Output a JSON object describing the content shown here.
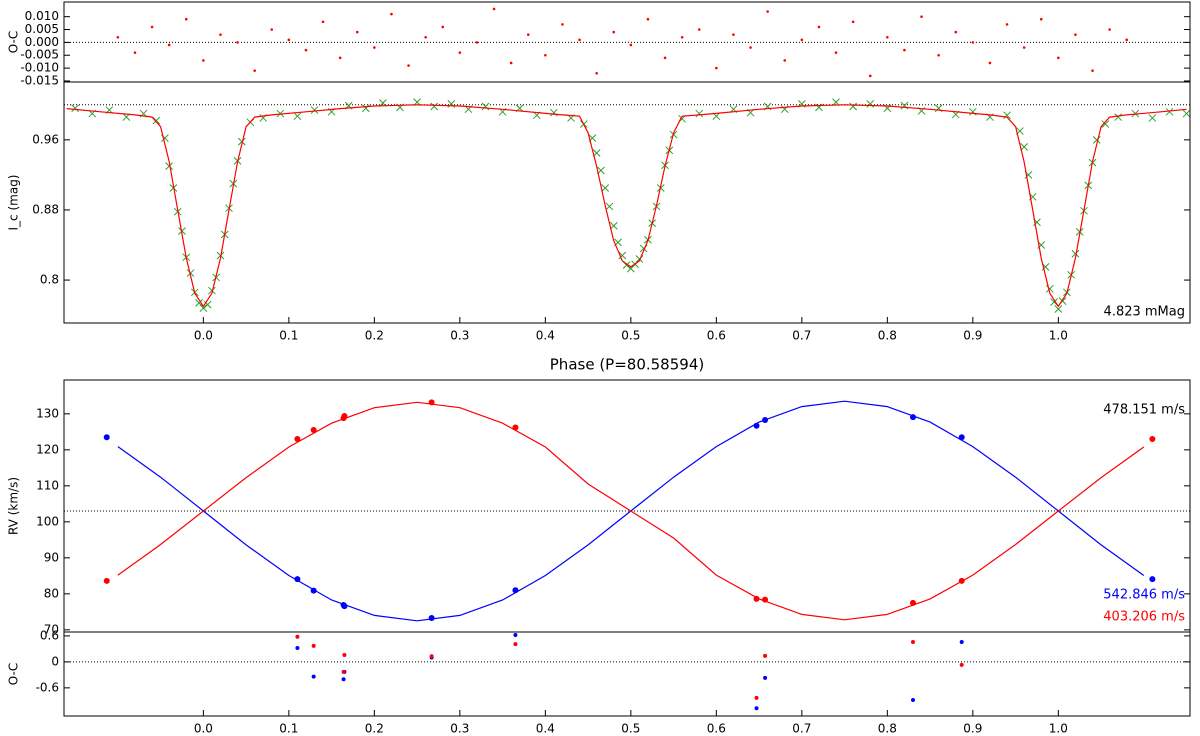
{
  "chart_data": [
    {
      "type": "scatter",
      "ylabel": "O-C",
      "xlim": [
        -0.163,
        1.154
      ],
      "ylim": [
        -0.0154,
        0.0157
      ],
      "yticks": [
        {
          "value": 0.01,
          "label": "0.010"
        },
        0.005,
        {
          "value": 0,
          "label": "0.000"
        },
        -0.005,
        {
          "value": -0.01,
          "label": "-0.010"
        },
        -0.015
      ],
      "reference": 0,
      "series": [
        {
          "type": "scatter",
          "marker": "dot",
          "color": "#ff0000",
          "x": [
            -0.1,
            -0.08,
            -0.06,
            -0.04,
            -0.02,
            0,
            0.02,
            0.04,
            0.06,
            0.08,
            0.1,
            0.12,
            0.14,
            0.16,
            0.18,
            0.2,
            0.22,
            0.24,
            0.26,
            0.28,
            0.3,
            0.32,
            0.34,
            0.36,
            0.38,
            0.4,
            0.42,
            0.44,
            0.46,
            0.48,
            0.5,
            0.52,
            0.54,
            0.56,
            0.58,
            0.6,
            0.62,
            0.64,
            0.66,
            0.68,
            0.7,
            0.72,
            0.74,
            0.76,
            0.78,
            0.8,
            0.82,
            0.84,
            0.86,
            0.88,
            0.9,
            0.92,
            0.94,
            0.96,
            0.98,
            1,
            1.02,
            1.04,
            1.06,
            1.08
          ],
          "values": [
            0.002,
            -0.004,
            0.006,
            -0.001,
            0.009,
            -0.007,
            0.003,
            0,
            -0.011,
            0.005,
            0.001,
            -0.003,
            0.008,
            -0.006,
            0.004,
            -0.002,
            0.011,
            -0.009,
            0.002,
            0.006,
            -0.004,
            0,
            0.013,
            -0.008,
            0.003,
            -0.005,
            0.007,
            0.001,
            -0.012,
            0.004,
            -0.001,
            0.009,
            -0.006,
            0.002,
            0.005,
            -0.01,
            0.003,
            -0.002,
            0.012,
            -0.007,
            0.001,
            0.006,
            -0.004,
            0.008,
            -0.013,
            0.002,
            -0.003,
            0.01,
            -0.005,
            0.004,
            0,
            -0.008,
            0.007,
            -0.002,
            0.009,
            -0.006,
            0.003,
            -0.011,
            0.005,
            0.001
          ]
        }
      ]
    },
    {
      "type": "line",
      "ylabel": "I_c (mag)",
      "xlabel": "Phase (P=80.58594)",
      "annotation": "4.823 mMag",
      "xlim": [
        -0.163,
        1.154
      ],
      "ylim": [
        0.751,
        1.026
      ],
      "xticks": [
        {
          "value": 0,
          "label": "0.0"
        },
        0.1,
        0.2,
        0.3,
        0.4,
        0.5,
        0.6,
        0.7,
        0.8,
        0.9,
        {
          "value": 1,
          "label": "1.0"
        }
      ],
      "yticks": [
        0.96,
        0.88,
        0.8
      ],
      "reference": 1,
      "series": [
        {
          "type": "scatter",
          "marker": "x",
          "color": "#2ca02c",
          "x": [
            -0.15,
            -0.13,
            -0.11,
            -0.09,
            -0.07,
            -0.055,
            -0.045,
            -0.04,
            -0.035,
            -0.03,
            -0.025,
            -0.02,
            -0.015,
            -0.01,
            -0.005,
            0,
            0.005,
            0.01,
            0.015,
            0.02,
            0.025,
            0.03,
            0.035,
            0.04,
            0.045,
            0.055,
            0.07,
            0.09,
            0.11,
            0.13,
            0.15,
            0.17,
            0.19,
            0.21,
            0.23,
            0.25,
            0.27,
            0.29,
            0.31,
            0.33,
            0.35,
            0.37,
            0.39,
            0.41,
            0.43,
            0.445,
            0.455,
            0.46,
            0.465,
            0.47,
            0.475,
            0.48,
            0.485,
            0.49,
            0.495,
            0.5,
            0.505,
            0.51,
            0.515,
            0.52,
            0.525,
            0.53,
            0.535,
            0.54,
            0.545,
            0.55,
            0.56,
            0.58,
            0.6,
            0.62,
            0.64,
            0.66,
            0.68,
            0.7,
            0.72,
            0.74,
            0.76,
            0.78,
            0.8,
            0.82,
            0.84,
            0.86,
            0.88,
            0.9,
            0.92,
            0.94,
            0.955,
            0.96,
            0.965,
            0.97,
            0.975,
            0.98,
            0.985,
            0.99,
            0.995,
            1,
            1.005,
            1.01,
            1.015,
            1.02,
            1.025,
            1.03,
            1.035,
            1.04,
            1.045,
            1.055,
            1.07,
            1.09,
            1.11,
            1.13,
            1.15
          ],
          "values": [
            0.996,
            0.99,
            0.994,
            0.986,
            0.99,
            0.982,
            0.962,
            0.93,
            0.905,
            0.878,
            0.856,
            0.826,
            0.808,
            0.786,
            0.774,
            0.768,
            0.772,
            0.788,
            0.803,
            0.828,
            0.852,
            0.882,
            0.91,
            0.936,
            0.958,
            0.98,
            0.985,
            0.99,
            0.987,
            0.994,
            0.992,
            0.999,
            0.996,
            1.002,
            0.997,
            1.003,
            0.998,
            1.001,
            0.995,
            0.998,
            0.992,
            0.996,
            0.988,
            0.991,
            0.985,
            0.978,
            0.962,
            0.945,
            0.925,
            0.905,
            0.884,
            0.862,
            0.843,
            0.828,
            0.817,
            0.813,
            0.818,
            0.824,
            0.836,
            0.846,
            0.865,
            0.884,
            0.905,
            0.931,
            0.948,
            0.966,
            0.984,
            0.99,
            0.987,
            0.995,
            0.991,
            0.998,
            0.995,
            1.001,
            0.997,
            1.003,
            0.998,
            1.001,
            0.996,
            0.999,
            0.993,
            0.996,
            0.989,
            0.992,
            0.986,
            0.988,
            0.97,
            0.952,
            0.92,
            0.895,
            0.866,
            0.84,
            0.815,
            0.79,
            0.775,
            0.767,
            0.776,
            0.786,
            0.806,
            0.83,
            0.855,
            0.879,
            0.908,
            0.934,
            0.96,
            0.978,
            0.986,
            0.99,
            0.985,
            0.992,
            0.99
          ]
        },
        {
          "type": "line",
          "color": "#ff0000",
          "x": [
            -0.16,
            -0.12,
            -0.08,
            -0.06,
            -0.05,
            -0.04,
            -0.03,
            -0.02,
            -0.01,
            0,
            0.01,
            0.02,
            0.03,
            0.04,
            0.05,
            0.06,
            0.08,
            0.12,
            0.16,
            0.2,
            0.25,
            0.3,
            0.35,
            0.4,
            0.42,
            0.44,
            0.45,
            0.46,
            0.47,
            0.48,
            0.49,
            0.5,
            0.51,
            0.52,
            0.53,
            0.54,
            0.55,
            0.56,
            0.58,
            0.6,
            0.65,
            0.7,
            0.75,
            0.8,
            0.85,
            0.9,
            0.92,
            0.94,
            0.95,
            0.96,
            0.97,
            0.98,
            0.99,
            1,
            1.01,
            1.02,
            1.03,
            1.04,
            1.05,
            1.06,
            1.08,
            1.12,
            1.15
          ],
          "values": [
            0.9957,
            0.992,
            0.9885,
            0.986,
            0.975,
            0.935,
            0.88,
            0.825,
            0.785,
            0.77,
            0.785,
            0.825,
            0.88,
            0.935,
            0.975,
            0.986,
            0.9885,
            0.992,
            0.9957,
            0.9986,
            1,
            0.9986,
            0.9948,
            0.9902,
            0.9885,
            0.987,
            0.968,
            0.93,
            0.885,
            0.845,
            0.822,
            0.815,
            0.822,
            0.845,
            0.885,
            0.93,
            0.968,
            0.987,
            0.9885,
            0.9902,
            0.9948,
            0.9986,
            1,
            0.9986,
            0.9948,
            0.9902,
            0.9885,
            0.986,
            0.975,
            0.935,
            0.88,
            0.825,
            0.785,
            0.77,
            0.785,
            0.825,
            0.88,
            0.935,
            0.975,
            0.986,
            0.9885,
            0.992,
            0.9948
          ]
        }
      ]
    },
    {
      "type": "line",
      "ylabel": "RV (km/s)",
      "annotations": [
        {
          "text": "478.151 m/s",
          "color": "#000000"
        },
        {
          "text": "542.846 m/s",
          "color": "#0000ff"
        },
        {
          "text": "403.206 m/s",
          "color": "#ff0000"
        }
      ],
      "xlim": [
        -0.163,
        1.154
      ],
      "ylim": [
        69.4,
        139.4
      ],
      "yticks": [
        130,
        120,
        110,
        100,
        90,
        80,
        70
      ],
      "reference": 103,
      "series": [
        {
          "type": "line",
          "color": "#0000ff",
          "x": [
            -0.1,
            -0.05,
            0,
            0.05,
            0.1,
            0.15,
            0.2,
            0.25,
            0.3,
            0.35,
            0.4,
            0.45,
            0.5,
            0.55,
            0.6,
            0.65,
            0.7,
            0.75,
            0.8,
            0.85,
            0.9,
            0.95,
            1,
            1.05,
            1.1
          ],
          "values": [
            120.9,
            112.4,
            103,
            93.6,
            85.1,
            78.3,
            74,
            72.5,
            74,
            78.3,
            85.1,
            93.6,
            103,
            112.4,
            120.9,
            127.7,
            132,
            133.5,
            132,
            127.7,
            120.9,
            112.4,
            103,
            93.6,
            85.1
          ]
        },
        {
          "type": "line",
          "color": "#ff0000",
          "x": [
            -0.1,
            -0.05,
            0,
            0.05,
            0.1,
            0.15,
            0.2,
            0.25,
            0.3,
            0.35,
            0.4,
            0.45,
            0.5,
            0.55,
            0.6,
            0.65,
            0.7,
            0.75,
            0.8,
            0.85,
            0.9,
            0.95,
            1,
            1.05,
            1.1
          ],
          "values": [
            85.2,
            93.7,
            103,
            112.3,
            120.8,
            127.4,
            131.7,
            133.2,
            131.7,
            127.4,
            120.8,
            110.5,
            103,
            95.5,
            85.2,
            78.6,
            74.3,
            72.8,
            74.3,
            78.6,
            85.2,
            93.7,
            103,
            112.3,
            120.8
          ]
        },
        {
          "type": "scatter",
          "marker": "dot",
          "color": "#0000ff",
          "x": [
            -0.113,
            0.11,
            0.129,
            0.164,
            0.165,
            0.267,
            0.365,
            0.647,
            0.657,
            0.83,
            0.887,
            1.11
          ],
          "values": [
            123.5,
            84.1,
            80.9,
            76.9,
            76.6,
            73.3,
            81,
            126.7,
            128.3,
            129.1,
            123.5,
            84.1
          ]
        },
        {
          "type": "scatter",
          "marker": "dot",
          "color": "#ff0000",
          "x": [
            -0.113,
            0.11,
            0.129,
            0.164,
            0.165,
            0.267,
            0.365,
            0.647,
            0.657,
            0.83,
            0.887,
            1.11
          ],
          "values": [
            83.6,
            123,
            125.5,
            128.8,
            129.4,
            133.2,
            126.2,
            78.6,
            78.4,
            77.5,
            83.6,
            123
          ]
        }
      ]
    },
    {
      "type": "scatter",
      "ylabel": "O-C",
      "xlim": [
        -0.163,
        1.154
      ],
      "ylim": [
        -1.25,
        0.69
      ],
      "xticks": [
        {
          "value": 0,
          "label": "0.0"
        },
        0.1,
        0.2,
        0.3,
        0.4,
        0.5,
        0.6,
        0.7,
        0.8,
        0.9,
        {
          "value": 1,
          "label": "1.0"
        }
      ],
      "yticks": [
        0.6,
        0,
        -0.6
      ],
      "reference": 0,
      "series": [
        {
          "type": "scatter",
          "marker": "dot",
          "color": "#0000ff",
          "x": [
            0.11,
            0.129,
            0.164,
            0.165,
            0.267,
            0.365,
            0.647,
            0.657,
            0.83,
            0.887
          ],
          "values": [
            0.32,
            -0.34,
            -0.4,
            -0.23,
            0.1,
            0.62,
            -1.07,
            -0.37,
            -0.88,
            0.46
          ]
        },
        {
          "type": "scatter",
          "marker": "dot",
          "color": "#ff0000",
          "x": [
            0.11,
            0.129,
            0.164,
            0.165,
            0.267,
            0.365,
            0.647,
            0.657,
            0.83,
            0.887
          ],
          "values": [
            0.58,
            0.37,
            -0.23,
            0.16,
            0.13,
            0.41,
            -0.83,
            0.14,
            0.46,
            -0.07
          ]
        }
      ]
    }
  ]
}
